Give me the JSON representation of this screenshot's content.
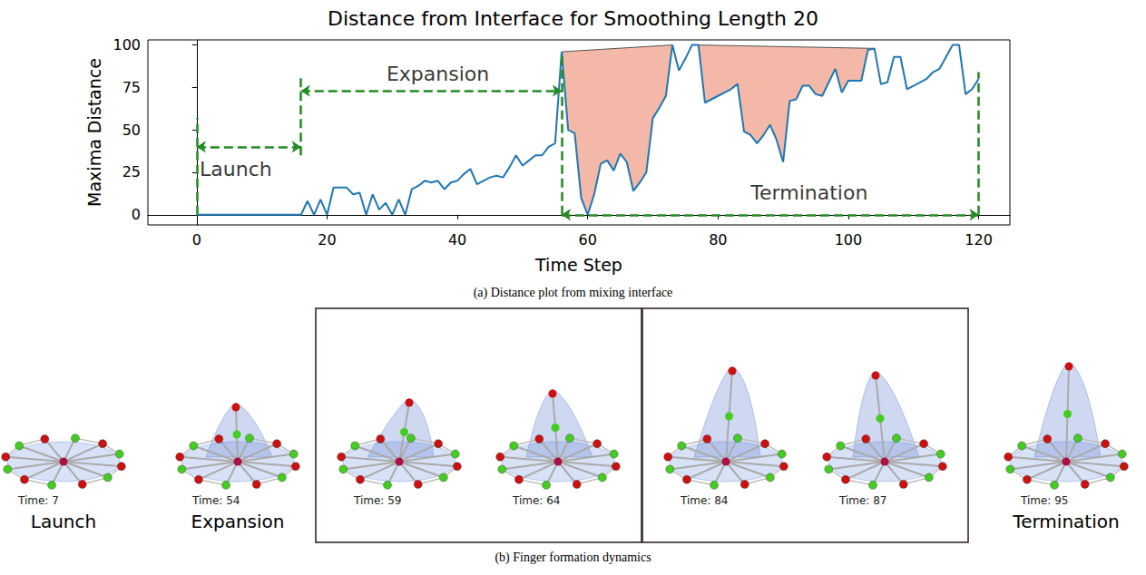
{
  "chart_data": {
    "type": "line",
    "title": "Distance from Interface for Smoothing Length 20",
    "x_label": "Time Step",
    "y_label": "Maxima Distance",
    "xlim": [
      -7.5,
      124.8
    ],
    "xticks": [
      0,
      20,
      40,
      60,
      80,
      100,
      120
    ],
    "ylim": [
      -6,
      103
    ],
    "yticks": [
      0,
      25,
      50,
      75,
      100
    ],
    "grid": false,
    "series": [
      {
        "name": "Maxima Distance",
        "color": "#1f77b4",
        "x": [
          0,
          1,
          2,
          3,
          4,
          5,
          6,
          7,
          8,
          9,
          10,
          11,
          12,
          13,
          14,
          15,
          16,
          17,
          18,
          19,
          20,
          21,
          22,
          23,
          24,
          25,
          26,
          27,
          28,
          29,
          30,
          31,
          32,
          33,
          34,
          35,
          36,
          37,
          38,
          39,
          40,
          41,
          42,
          43,
          44,
          45,
          46,
          47,
          48,
          49,
          50,
          51,
          52,
          53,
          54,
          55,
          56,
          57,
          58,
          59,
          60,
          61,
          62,
          63,
          64,
          65,
          66,
          67,
          68,
          69,
          70,
          71,
          72,
          73,
          74,
          75,
          76,
          77,
          78,
          79,
          80,
          81,
          82,
          83,
          84,
          85,
          86,
          87,
          88,
          89,
          90,
          91,
          92,
          93,
          94,
          95,
          96,
          97,
          98,
          99,
          100,
          101,
          102,
          103,
          104,
          105,
          106,
          107,
          108,
          109,
          110,
          111,
          112,
          113,
          114,
          115,
          116,
          117,
          118,
          119,
          120
        ],
        "values": [
          0,
          0,
          0,
          0,
          0,
          0,
          0,
          0,
          0,
          0,
          0,
          0,
          0,
          0,
          0,
          0,
          0,
          8,
          0,
          9,
          0,
          16,
          16,
          16,
          12,
          13,
          0,
          12,
          3,
          7,
          0,
          9,
          0,
          15,
          17,
          20,
          19,
          20,
          15,
          19,
          20,
          24,
          27,
          18,
          20,
          22,
          23,
          22,
          28,
          35,
          29,
          32,
          35,
          35,
          40,
          42,
          96,
          50,
          48,
          10,
          0,
          12,
          30,
          32,
          26,
          36,
          31,
          14,
          19,
          25,
          57,
          63,
          70,
          100,
          85,
          92,
          100,
          100,
          66,
          68,
          70,
          72,
          74,
          77,
          49,
          47,
          42,
          47,
          53,
          44,
          31,
          67,
          68,
          76,
          76,
          71,
          70,
          78,
          86,
          72,
          79,
          79,
          79,
          97,
          98,
          77,
          78,
          93,
          93,
          74,
          76,
          78,
          80,
          84,
          86,
          93,
          100,
          100,
          71,
          74,
          80
        ]
      }
    ],
    "shaded_regions": [
      {
        "start": 56,
        "end": 73,
        "color": "#f4b8a8"
      },
      {
        "start": 77,
        "end": 104,
        "color": "#f4b8a8"
      }
    ],
    "phases": [
      {
        "label": "Launch",
        "start": 0,
        "end": 16,
        "y": 40,
        "label_x": 6,
        "label_y": 27
      },
      {
        "label": "Expansion",
        "start": 16,
        "end": 56,
        "y": 73,
        "label_x": 37,
        "label_y": 83
      },
      {
        "label": "Termination",
        "start": 56,
        "end": 120,
        "y": 0,
        "label_x": 94,
        "label_y": 13
      }
    ],
    "dividers": [
      {
        "x": 0,
        "y": [
          0,
          57
        ]
      },
      {
        "x": 16,
        "y": [
          35,
          82
        ]
      },
      {
        "x": 56,
        "y": [
          0,
          96
        ]
      },
      {
        "x": 120,
        "y": [
          0,
          84
        ]
      }
    ],
    "phase_color": "#228b22",
    "caption": "(a) Distance plot from mixing interface"
  },
  "figure": {
    "caption": "(b) Finger formation dynamics",
    "panels": [
      {
        "time": "Time: 7",
        "label": "Launch"
      },
      {
        "time": "Time: 54",
        "label": "Expansion"
      },
      {
        "time": "Time: 59",
        "group": 1
      },
      {
        "time": "Time: 64",
        "group": 1
      },
      {
        "time": "Time: 84",
        "group": 2
      },
      {
        "time": "Time: 87",
        "group": 2
      },
      {
        "time": "Time: 95",
        "label": "Termination"
      }
    ]
  }
}
